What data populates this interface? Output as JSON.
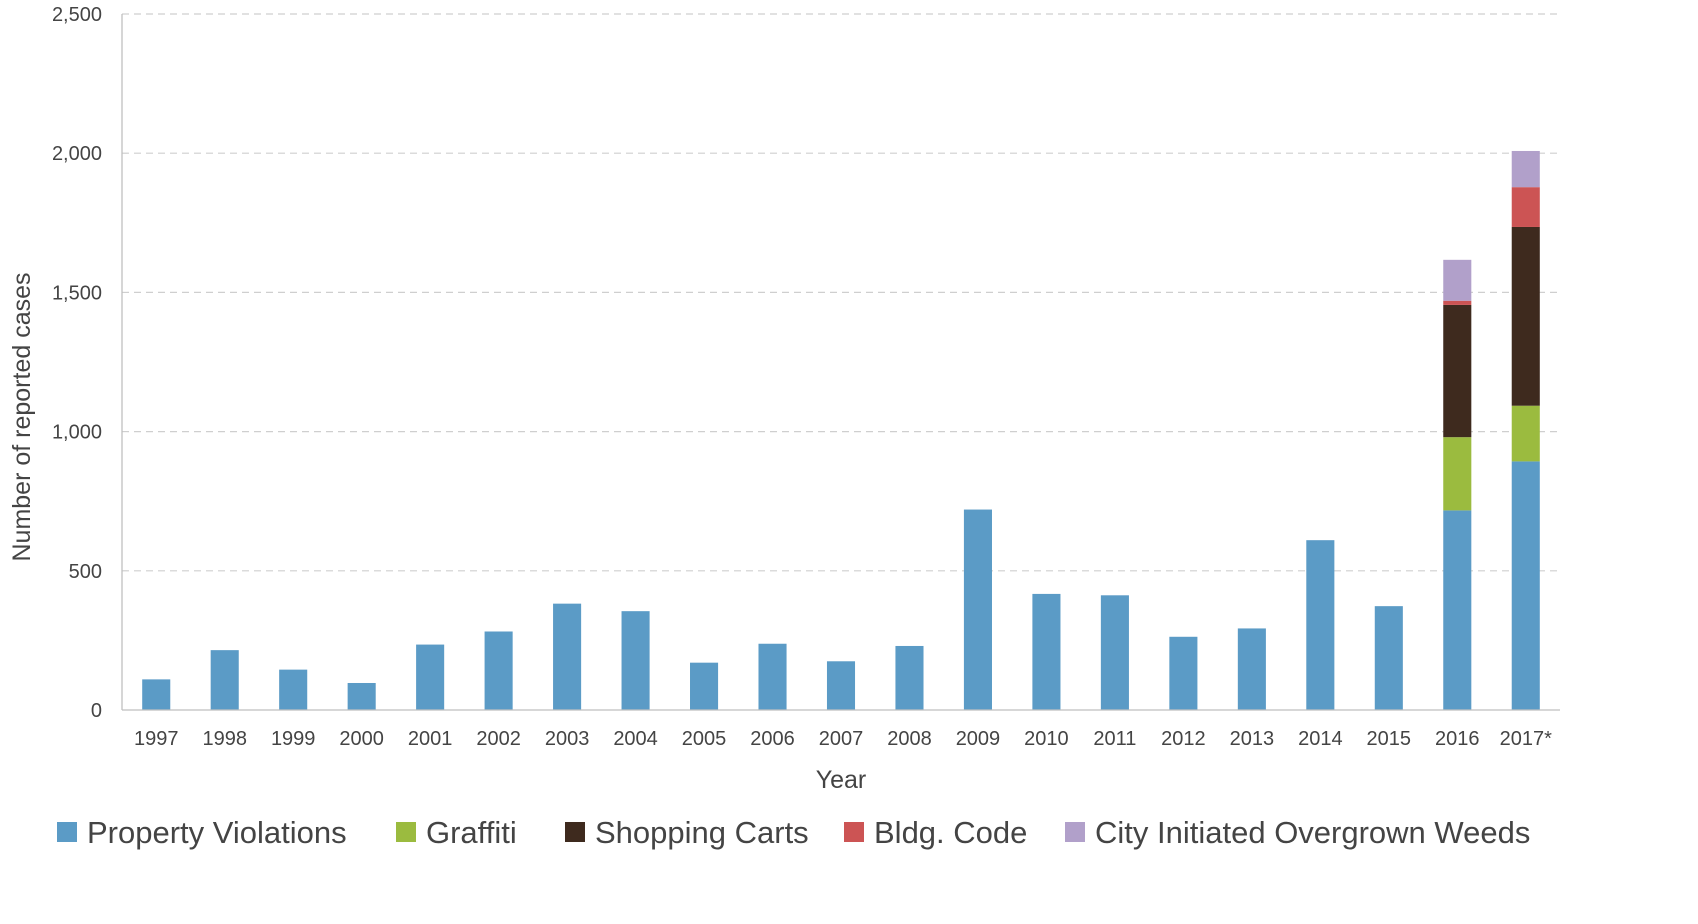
{
  "chart_data": {
    "type": "bar",
    "stacked": true,
    "xlabel": "Year",
    "ylabel": "Number of reported cases",
    "ylim": [
      0,
      2500
    ],
    "yticks": [
      0,
      500,
      1000,
      1500,
      2000,
      2500
    ],
    "ytick_labels": [
      "0",
      "500",
      "1,000",
      "1,500",
      "2,000",
      "2,500"
    ],
    "grid": true,
    "legend_position": "bottom",
    "categories": [
      "1997",
      "1998",
      "1999",
      "2000",
      "2001",
      "2002",
      "2003",
      "2004",
      "2005",
      "2006",
      "2007",
      "2008",
      "2009",
      "2010",
      "2011",
      "2012",
      "2013",
      "2014",
      "2015",
      "2016",
      "2017*"
    ],
    "series": [
      {
        "name": "Property Violations",
        "color": "#5b9bc6",
        "values": [
          110,
          215,
          145,
          97,
          235,
          282,
          382,
          355,
          170,
          238,
          175,
          230,
          720,
          417,
          412,
          263,
          293,
          610,
          373,
          717,
          893
        ]
      },
      {
        "name": "Graffiti",
        "color": "#9bbb3f",
        "values": [
          0,
          0,
          0,
          0,
          0,
          0,
          0,
          0,
          0,
          0,
          0,
          0,
          0,
          0,
          0,
          0,
          0,
          0,
          0,
          263,
          200
        ]
      },
      {
        "name": "Shopping Carts",
        "color": "#3e2a1e",
        "values": [
          0,
          0,
          0,
          0,
          0,
          0,
          0,
          0,
          0,
          0,
          0,
          0,
          0,
          0,
          0,
          0,
          0,
          0,
          0,
          475,
          642
        ]
      },
      {
        "name": "Bldg. Code",
        "color": "#cc5454",
        "values": [
          0,
          0,
          0,
          0,
          0,
          0,
          0,
          0,
          0,
          0,
          0,
          0,
          0,
          0,
          0,
          0,
          0,
          0,
          0,
          15,
          143
        ]
      },
      {
        "name": "City Initiated Overgrown Weeds",
        "color": "#b1a0ca",
        "values": [
          0,
          0,
          0,
          0,
          0,
          0,
          0,
          0,
          0,
          0,
          0,
          0,
          0,
          0,
          0,
          0,
          0,
          0,
          0,
          147,
          130
        ]
      }
    ]
  }
}
